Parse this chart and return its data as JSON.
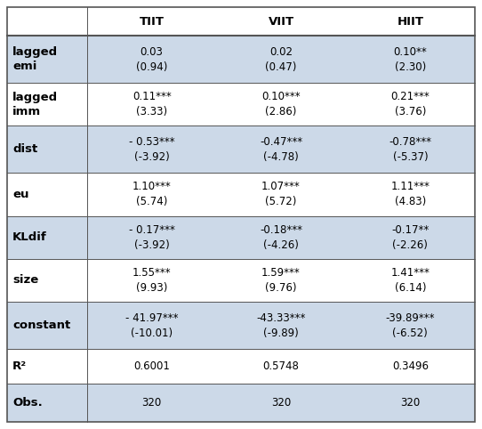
{
  "col_headers": [
    "TIIT",
    "VIIT",
    "HIIT"
  ],
  "row_labels": [
    "lagged\nemi",
    "lagged\nimm",
    "dist",
    "eu",
    "KLdif",
    "size",
    "constant",
    "R²",
    "Obs."
  ],
  "cell_data": [
    [
      "0.03\n(0.94)",
      "0.02\n(0.47)",
      "0.10**\n(2.30)"
    ],
    [
      "0.11***\n(3.33)",
      "0.10***\n(2.86)",
      "0.21***\n(3.76)"
    ],
    [
      "- 0.53***\n(-3.92)",
      "-0.47***\n(-4.78)",
      "-0.78***\n(-5.37)"
    ],
    [
      "1.10***\n(5.74)",
      "1.07***\n(5.72)",
      "1.11***\n(4.83)"
    ],
    [
      "- 0.17***\n(-3.92)",
      "-0.18***\n(-4.26)",
      "-0.17**\n(-2.26)"
    ],
    [
      "1.55***\n(9.93)",
      "1.59***\n(9.76)",
      "1.41***\n(6.14)"
    ],
    [
      "- 41.97***\n(-10.01)",
      "-43.33***\n(-9.89)",
      "-39.89***\n(-6.52)"
    ],
    [
      "0.6001",
      "0.5748",
      "0.3496"
    ],
    [
      "320",
      "320",
      "320"
    ]
  ],
  "shaded_rows": [
    0,
    2,
    4,
    6,
    8
  ],
  "shade_color": "#ccd9e8",
  "white_color": "#ffffff",
  "border_color": "#555555",
  "text_color": "#000000",
  "font_size": 8.5,
  "header_font_size": 9.5,
  "row_label_font_size": 9.5,
  "fig_width": 5.42,
  "fig_height": 4.82,
  "dpi": 100
}
